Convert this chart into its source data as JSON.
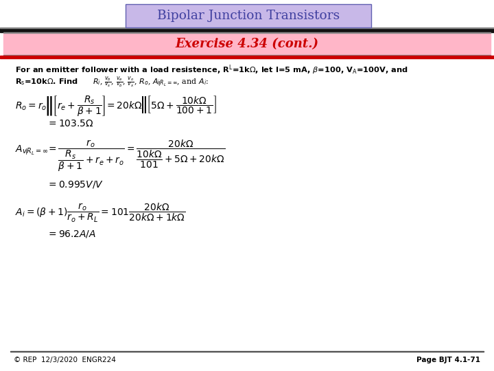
{
  "title": "Bipolar Junction Transistors",
  "subtitle": "Exercise 4.34 (cont.)",
  "title_box_color": "#c8b8e8",
  "subtitle_box_color": "#ffb6c8",
  "title_text_color": "#4040a0",
  "subtitle_text_color": "#cc0000",
  "background_color": "#ffffff",
  "footer_left": "© REP  12/3/2020  ENGR224",
  "footer_right": "Page BJT 4.1-71"
}
